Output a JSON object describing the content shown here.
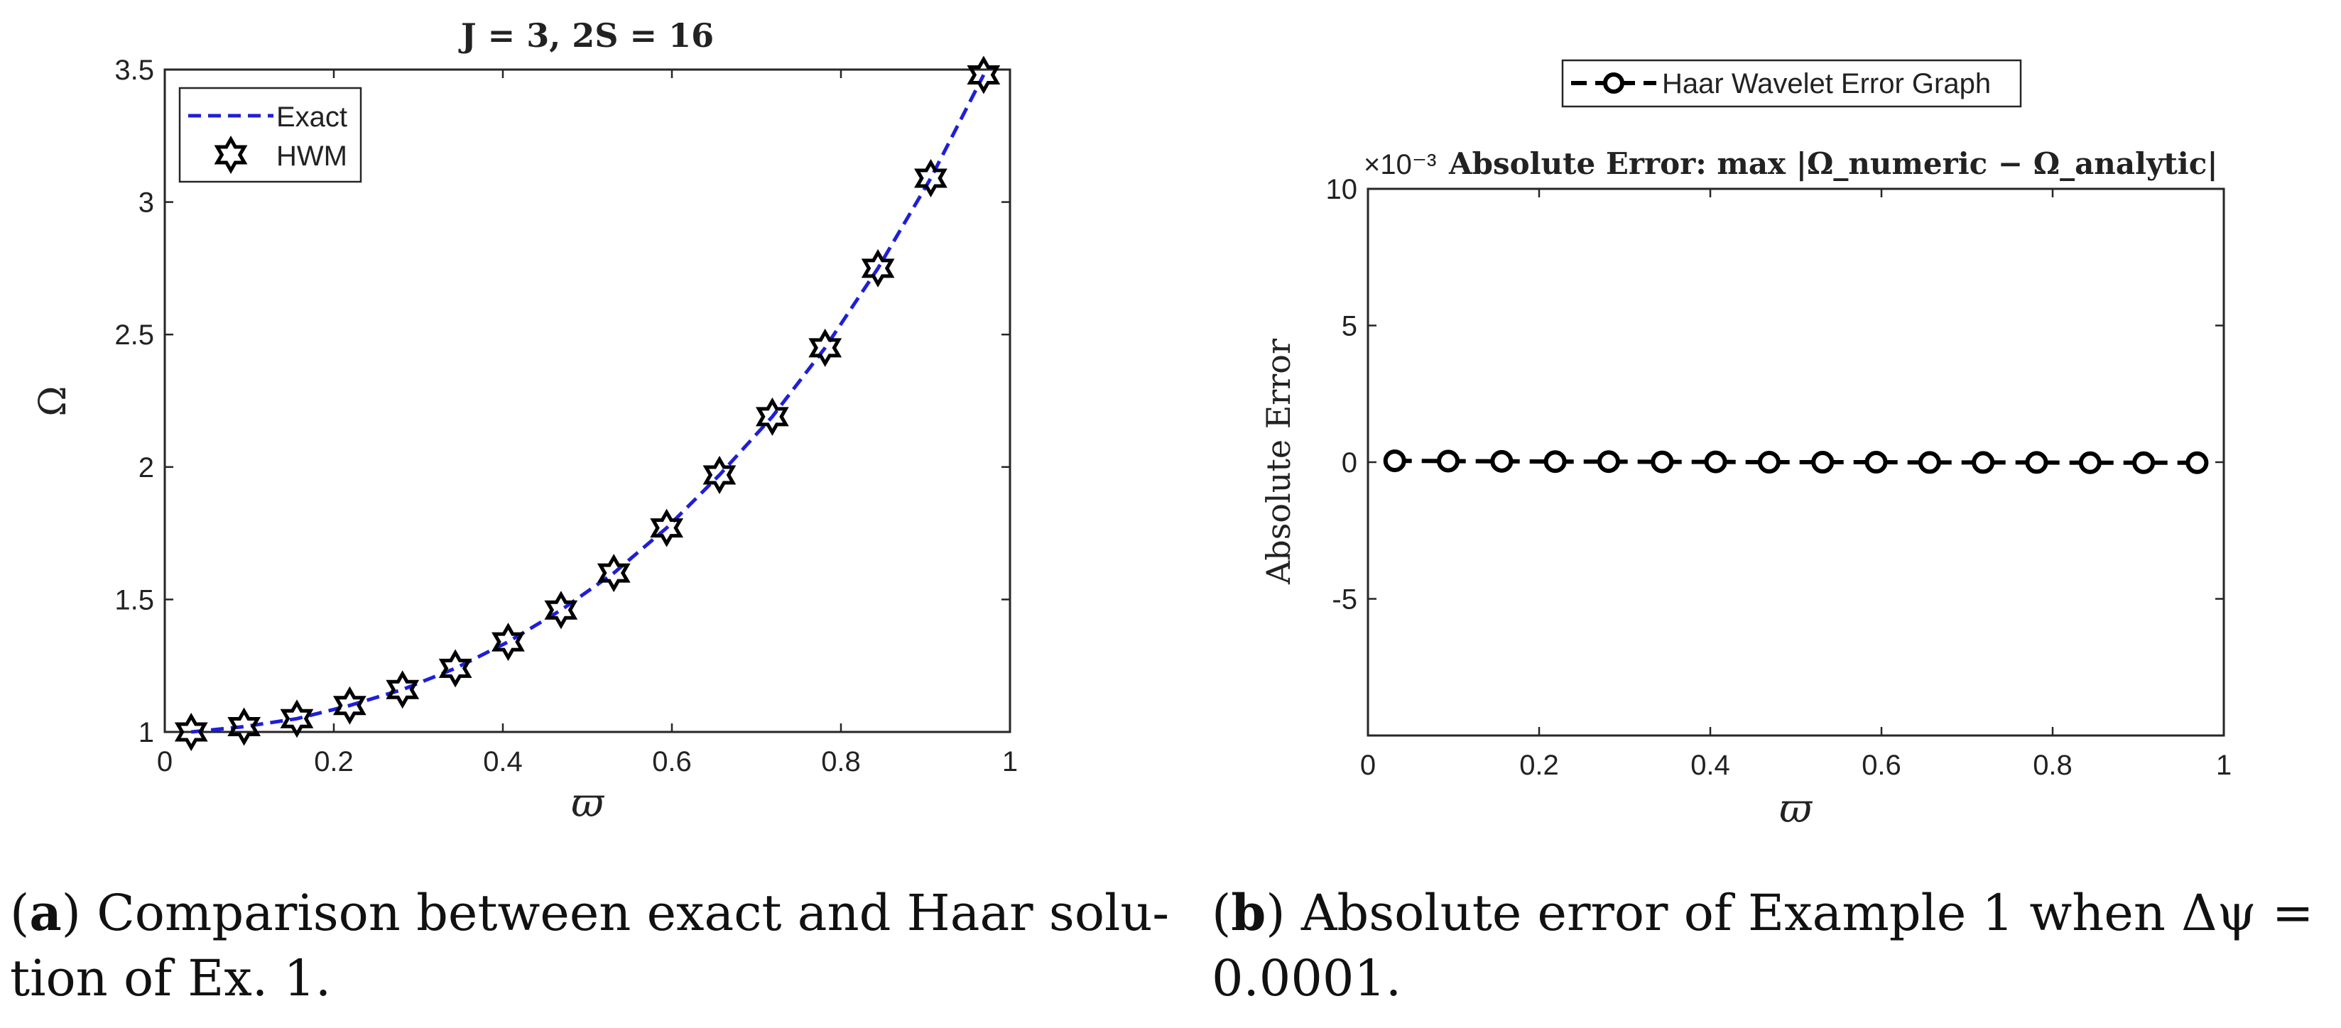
{
  "figure": {
    "panel_a": {
      "caption_label": "a",
      "caption_line1": " Comparison between exact and Haar solu-",
      "caption_line2": "tion of Ex. 1."
    },
    "panel_b": {
      "caption_label": "b",
      "caption_line1": " Absolute error of Example 1 when Δψ =",
      "caption_line2": "0.0001."
    }
  },
  "chart_data": [
    {
      "type": "line",
      "title": "J = 3, 2S = 16",
      "xlabel": "ϖ",
      "ylabel": "Ω",
      "xlim": [
        0,
        1
      ],
      "ylim": [
        1,
        3.5
      ],
      "xticks": [
        "0",
        "0.2",
        "0.4",
        "0.6",
        "0.8",
        "1"
      ],
      "yticks": [
        "1",
        "1.5",
        "2",
        "2.5",
        "3",
        "3.5"
      ],
      "grid": false,
      "legend": "top-left",
      "x": [
        0.0313,
        0.0938,
        0.1563,
        0.2188,
        0.2813,
        0.3438,
        0.4063,
        0.4688,
        0.5313,
        0.5938,
        0.6563,
        0.7188,
        0.7813,
        0.8438,
        0.9063,
        0.9688
      ],
      "series": [
        {
          "name": "Exact",
          "style": "dashed-line",
          "color": "#1f1fd6",
          "values": [
            1.0,
            1.02,
            1.05,
            1.1,
            1.16,
            1.24,
            1.34,
            1.46,
            1.6,
            1.77,
            1.97,
            2.19,
            2.45,
            2.75,
            3.09,
            3.48
          ]
        },
        {
          "name": "HWM",
          "style": "hexagram-marker",
          "color": "#000000",
          "values": [
            1.0,
            1.02,
            1.05,
            1.1,
            1.16,
            1.24,
            1.34,
            1.46,
            1.6,
            1.77,
            1.97,
            2.19,
            2.45,
            2.75,
            3.09,
            3.48
          ]
        }
      ]
    },
    {
      "type": "line",
      "title": "Absolute Error: max |Ω_numeric − Ω_analytic|",
      "exponent_label": "×10⁻³",
      "xlabel": "ϖ",
      "ylabel": "Absolute Error",
      "xlim": [
        0,
        1
      ],
      "ylim": [
        -10,
        10
      ],
      "xticks": [
        "0",
        "0.2",
        "0.4",
        "0.6",
        "0.8",
        "1"
      ],
      "yticks": [
        "10",
        "5",
        "0",
        "-5"
      ],
      "grid": false,
      "legend": "top-center-outside",
      "x": [
        0.0313,
        0.0938,
        0.1563,
        0.2188,
        0.2813,
        0.3438,
        0.4063,
        0.4688,
        0.5313,
        0.5938,
        0.6563,
        0.7188,
        0.7813,
        0.8438,
        0.9063,
        0.9688
      ],
      "series": [
        {
          "name": "Haar Wavelet Error Graph",
          "style": "dashed-line-circle-marker",
          "color": "#000000",
          "values": [
            0.05,
            0.04,
            0.03,
            0.02,
            0.02,
            0.01,
            0.01,
            0.0,
            0.0,
            0.0,
            -0.01,
            -0.01,
            -0.01,
            -0.02,
            -0.02,
            -0.02
          ]
        }
      ]
    }
  ]
}
